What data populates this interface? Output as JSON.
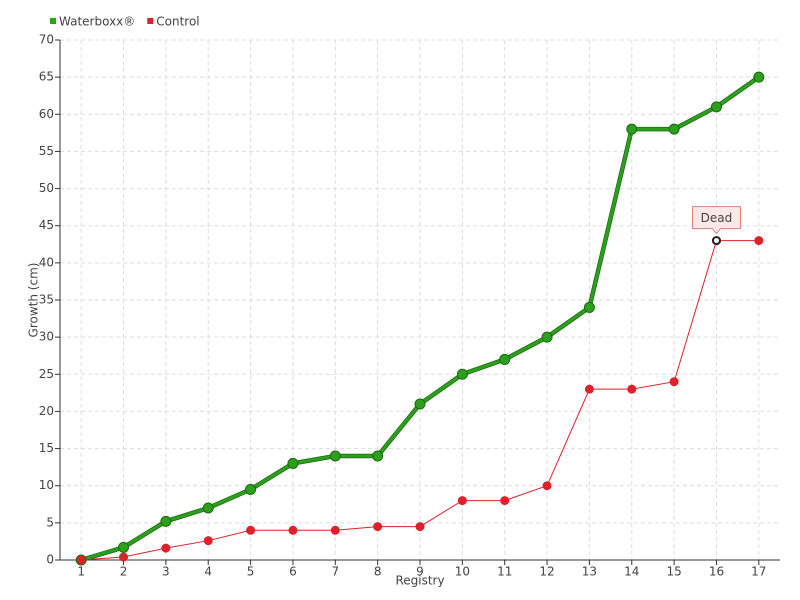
{
  "chart_data": {
    "type": "line",
    "x_label": "Registry",
    "y_label": "Growth (cm)",
    "categories": [
      "1",
      "2",
      "3",
      "4",
      "5",
      "6",
      "7",
      "8",
      "9",
      "10",
      "11",
      "12",
      "13",
      "14",
      "15",
      "16",
      "17"
    ],
    "series": [
      {
        "name": "Waterboxx®",
        "color": "#2ca01c",
        "values": [
          0,
          1.7,
          5.2,
          7,
          9.5,
          13,
          14,
          14,
          21,
          25,
          27,
          30,
          34,
          58,
          58,
          61,
          65
        ]
      },
      {
        "name": "Control",
        "color": "#e0202a",
        "values": [
          0,
          0.4,
          1.6,
          2.6,
          4,
          4,
          4,
          4.5,
          4.5,
          8,
          8,
          10,
          23,
          23,
          24,
          43,
          43
        ]
      }
    ],
    "annotations": [
      {
        "text": "Dead",
        "category": "16",
        "value": 43
      }
    ],
    "ylim": [
      0,
      70
    ],
    "yticks": [
      0,
      5,
      10,
      15,
      20,
      25,
      30,
      35,
      40,
      45,
      50,
      55,
      60,
      65,
      70
    ],
    "grid": true,
    "legend": "top-left"
  }
}
